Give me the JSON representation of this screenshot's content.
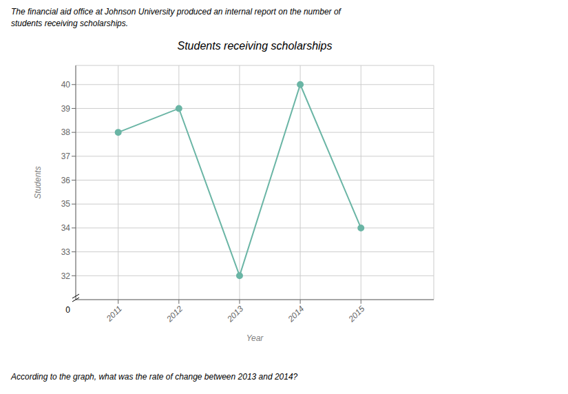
{
  "chart_data": {
    "type": "line",
    "title": "Students receiving scholarships",
    "subtitle": [
      "The financial aid office at Johnson University produced an internal report on the number of",
      "students receiving scholarships."
    ],
    "annotations": [
      "According to the graph, what was the rate of change between 2013 and 2014?",
      "0"
    ],
    "x_label": "Year",
    "y_label": "Students",
    "x": [
      2011,
      2012,
      2013,
      2014,
      2015
    ],
    "series": [
      {
        "name": "Students",
        "color": "#6ab5a5",
        "marker": "circle",
        "values": [
          38,
          39,
          32,
          40,
          34
        ]
      }
    ],
    "xlim": [
      2010.3,
      2016.2
    ],
    "xticks": [
      2011,
      2012,
      2013,
      2014,
      2015
    ],
    "ylim": [
      31.0,
      40.8
    ],
    "yticks": [
      32,
      33,
      34,
      35,
      36,
      37,
      38,
      39,
      40
    ],
    "grid": true
  }
}
